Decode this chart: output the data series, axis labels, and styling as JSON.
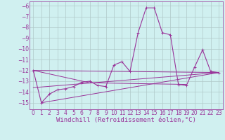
{
  "x": [
    0,
    1,
    2,
    3,
    4,
    5,
    6,
    7,
    8,
    9,
    10,
    11,
    12,
    13,
    14,
    15,
    16,
    17,
    18,
    19,
    20,
    21,
    22,
    23
  ],
  "main_line": [
    -12.0,
    -15.0,
    -14.2,
    -13.8,
    -13.7,
    -13.5,
    -13.1,
    -13.0,
    -13.4,
    -13.5,
    -11.5,
    -11.2,
    -12.1,
    -8.5,
    -6.2,
    -6.2,
    -8.5,
    -8.7,
    -13.3,
    -13.4,
    -11.7,
    -10.1,
    -12.1,
    -12.2
  ],
  "trend1_x": [
    0,
    23
  ],
  "trend1_y": [
    -12.0,
    -12.2
  ],
  "trend2_x": [
    0,
    7,
    19
  ],
  "trend2_y": [
    -12.0,
    -13.15,
    -13.3
  ],
  "trend3_x": [
    1,
    23
  ],
  "trend3_y": [
    -15.0,
    -12.2
  ],
  "trend4_x": [
    0,
    23
  ],
  "trend4_y": [
    -13.6,
    -12.2
  ],
  "background_color": "#d0f0f0",
  "grid_color": "#b0c8c8",
  "line_color": "#993399",
  "xlabel": "Windchill (Refroidissement éolien,°C)",
  "xlim": [
    -0.5,
    23.5
  ],
  "ylim": [
    -15.6,
    -5.6
  ],
  "yticks": [
    -6,
    -7,
    -8,
    -9,
    -10,
    -11,
    -12,
    -13,
    -14,
    -15
  ],
  "xticks": [
    0,
    1,
    2,
    3,
    4,
    5,
    6,
    7,
    8,
    9,
    10,
    11,
    12,
    13,
    14,
    15,
    16,
    17,
    18,
    19,
    20,
    21,
    22,
    23
  ],
  "tick_label_fontsize": 5.5,
  "xlabel_fontsize": 6.5
}
